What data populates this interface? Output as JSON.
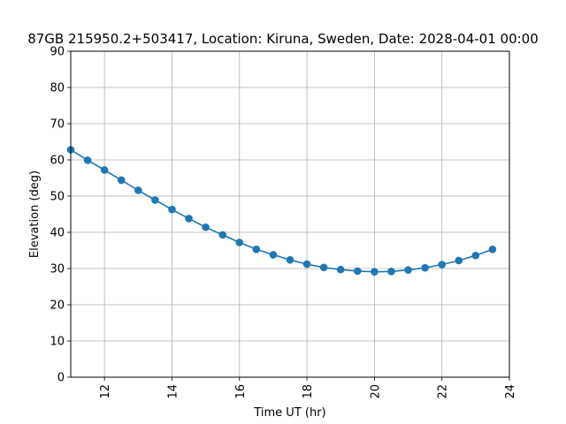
{
  "chart_data": {
    "type": "line",
    "title": "87GB 215950.2+503417,  Location: Kiruna, Sweden, Date: 2028-04-01 00:00",
    "xlabel": "Time UT (hr)",
    "ylabel": "Elevation (deg)",
    "xlim": [
      11,
      24
    ],
    "ylim": [
      0,
      90
    ],
    "xticks": [
      12,
      14,
      16,
      18,
      20,
      22,
      24
    ],
    "yticks": [
      0,
      10,
      20,
      30,
      40,
      50,
      60,
      70,
      80,
      90
    ],
    "grid": true,
    "marker": "circle",
    "color": "#1f77b4",
    "x": [
      11.0,
      11.5,
      12.0,
      12.5,
      13.0,
      13.5,
      14.0,
      14.5,
      15.0,
      15.5,
      16.0,
      16.5,
      17.0,
      17.5,
      18.0,
      18.5,
      19.0,
      19.5,
      20.0,
      20.5,
      21.0,
      21.5,
      22.0,
      22.5,
      23.0,
      23.5
    ],
    "y": [
      62.8,
      59.9,
      57.2,
      54.4,
      51.6,
      48.9,
      46.3,
      43.8,
      41.4,
      39.3,
      37.2,
      35.3,
      33.8,
      32.4,
      31.2,
      30.3,
      29.7,
      29.3,
      29.1,
      29.2,
      29.6,
      30.2,
      31.1,
      32.2,
      33.6,
      35.3
    ]
  }
}
